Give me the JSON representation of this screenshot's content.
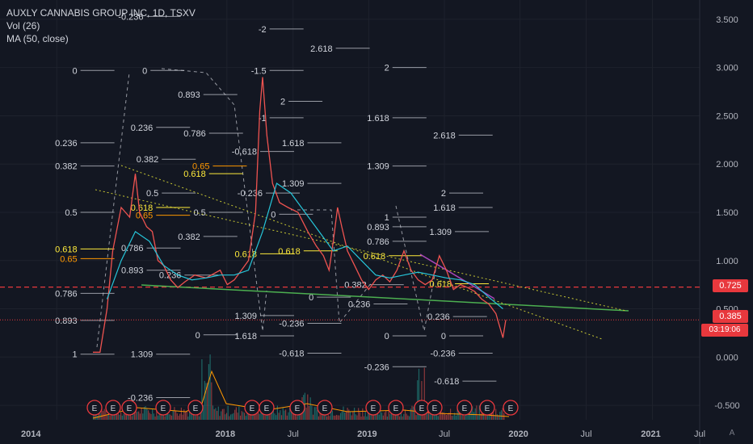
{
  "legend": {
    "title": "AUXLY CANNABIS GROUP INC, 1D, TSXV",
    "vol": "Vol (26)",
    "ma": "MA (50, close)"
  },
  "price_tags": {
    "resistance": "0.725",
    "last": "0.385",
    "timer": "03:19:06"
  },
  "auto_label": "A",
  "colors": {
    "background": "#131722",
    "grid": "#1e222d",
    "axis_text": "#b2b5be",
    "price": "#ef5350",
    "ma": "#26c6da",
    "trend_green": "#4caf50",
    "channel_yellow": "#c6c633",
    "fib": "#d1d4dc",
    "fib_highlight": "#ffeb3b",
    "fib_orange": "#ff9800",
    "dashed_red": "#e8383d",
    "event": "#e8383d"
  },
  "chart_data": {
    "type": "line",
    "x_ticks": [
      "2014",
      "2018",
      "Jul",
      "2019",
      "Jul",
      "2020",
      "Jul",
      "2021",
      "Jul"
    ],
    "y_ticks": [
      "3.500",
      "3.000",
      "2.500",
      "2.000",
      "1.500",
      "1.000",
      "0.500",
      "0.000",
      "-0.500"
    ],
    "ylim": [
      -0.65,
      3.7
    ],
    "resistance_line": 0.725,
    "last_price": 0.385,
    "price_series": [
      {
        "x": 0.0,
        "y": 0.05
      },
      {
        "x": 0.05,
        "y": 0.05
      },
      {
        "x": 0.1,
        "y": 0.5
      },
      {
        "x": 0.14,
        "y": 1.1
      },
      {
        "x": 0.2,
        "y": 1.55
      },
      {
        "x": 0.26,
        "y": 1.45
      },
      {
        "x": 0.3,
        "y": 1.9
      },
      {
        "x": 0.33,
        "y": 1.5
      },
      {
        "x": 0.38,
        "y": 1.35
      },
      {
        "x": 0.42,
        "y": 1.3
      },
      {
        "x": 0.46,
        "y": 1.0
      },
      {
        "x": 0.5,
        "y": 0.95
      },
      {
        "x": 0.55,
        "y": 0.8
      },
      {
        "x": 0.6,
        "y": 0.72
      },
      {
        "x": 0.65,
        "y": 0.78
      },
      {
        "x": 0.72,
        "y": 0.85
      },
      {
        "x": 0.8,
        "y": 0.82
      },
      {
        "x": 0.9,
        "y": 0.9
      },
      {
        "x": 0.95,
        "y": 0.75
      },
      {
        "x": 1.0,
        "y": 0.8
      },
      {
        "x": 1.05,
        "y": 0.9
      },
      {
        "x": 1.1,
        "y": 1.0
      },
      {
        "x": 1.15,
        "y": 1.5
      },
      {
        "x": 1.18,
        "y": 2.55
      },
      {
        "x": 1.2,
        "y": 2.9
      },
      {
        "x": 1.23,
        "y": 2.3
      },
      {
        "x": 1.27,
        "y": 1.8
      },
      {
        "x": 1.32,
        "y": 1.6
      },
      {
        "x": 1.38,
        "y": 1.55
      },
      {
        "x": 1.45,
        "y": 1.5
      },
      {
        "x": 1.52,
        "y": 1.3
      },
      {
        "x": 1.58,
        "y": 1.15
      },
      {
        "x": 1.63,
        "y": 1.05
      },
      {
        "x": 1.67,
        "y": 0.9
      },
      {
        "x": 1.7,
        "y": 1.2
      },
      {
        "x": 1.73,
        "y": 1.55
      },
      {
        "x": 1.76,
        "y": 1.35
      },
      {
        "x": 1.8,
        "y": 1.1
      },
      {
        "x": 1.85,
        "y": 0.95
      },
      {
        "x": 1.9,
        "y": 0.8
      },
      {
        "x": 1.95,
        "y": 0.7
      },
      {
        "x": 2.0,
        "y": 0.8
      },
      {
        "x": 2.05,
        "y": 0.85
      },
      {
        "x": 2.1,
        "y": 0.78
      },
      {
        "x": 2.15,
        "y": 0.9
      },
      {
        "x": 2.2,
        "y": 1.1
      },
      {
        "x": 2.25,
        "y": 0.9
      },
      {
        "x": 2.3,
        "y": 0.8
      },
      {
        "x": 2.35,
        "y": 0.75
      },
      {
        "x": 2.4,
        "y": 0.8
      },
      {
        "x": 2.45,
        "y": 1.05
      },
      {
        "x": 2.5,
        "y": 0.9
      },
      {
        "x": 2.55,
        "y": 0.7
      },
      {
        "x": 2.6,
        "y": 0.75
      },
      {
        "x": 2.65,
        "y": 0.72
      },
      {
        "x": 2.7,
        "y": 0.68
      },
      {
        "x": 2.75,
        "y": 0.6
      },
      {
        "x": 2.8,
        "y": 0.55
      },
      {
        "x": 2.85,
        "y": 0.45
      },
      {
        "x": 2.88,
        "y": 0.3
      },
      {
        "x": 2.9,
        "y": 0.2
      },
      {
        "x": 2.92,
        "y": 0.385
      }
    ],
    "ma_series": [
      {
        "x": 0.1,
        "y": 0.6
      },
      {
        "x": 0.2,
        "y": 1.0
      },
      {
        "x": 0.3,
        "y": 1.3
      },
      {
        "x": 0.4,
        "y": 1.2
      },
      {
        "x": 0.5,
        "y": 0.95
      },
      {
        "x": 0.6,
        "y": 0.85
      },
      {
        "x": 0.7,
        "y": 0.8
      },
      {
        "x": 0.8,
        "y": 0.82
      },
      {
        "x": 0.9,
        "y": 0.85
      },
      {
        "x": 1.0,
        "y": 0.85
      },
      {
        "x": 1.1,
        "y": 0.9
      },
      {
        "x": 1.2,
        "y": 1.3
      },
      {
        "x": 1.3,
        "y": 1.8
      },
      {
        "x": 1.4,
        "y": 1.7
      },
      {
        "x": 1.5,
        "y": 1.5
      },
      {
        "x": 1.6,
        "y": 1.3
      },
      {
        "x": 1.7,
        "y": 1.1
      },
      {
        "x": 1.8,
        "y": 1.15
      },
      {
        "x": 1.9,
        "y": 1.0
      },
      {
        "x": 2.0,
        "y": 0.85
      },
      {
        "x": 2.1,
        "y": 0.82
      },
      {
        "x": 2.2,
        "y": 0.85
      },
      {
        "x": 2.3,
        "y": 0.88
      },
      {
        "x": 2.4,
        "y": 0.85
      },
      {
        "x": 2.5,
        "y": 0.82
      },
      {
        "x": 2.6,
        "y": 0.8
      },
      {
        "x": 2.7,
        "y": 0.75
      },
      {
        "x": 2.8,
        "y": 0.62
      },
      {
        "x": 2.9,
        "y": 0.5
      }
    ],
    "green_trendline": [
      {
        "x": 0.2,
        "y": 0.72
      },
      {
        "x": 3.7,
        "y": 0.42
      }
    ],
    "channel_upper": [
      {
        "x": 0.0,
        "y": 1.75
      },
      {
        "x": 3.7,
        "y": 0.42
      }
    ],
    "channel_lower": [
      {
        "x": 0.3,
        "y": 2.0
      },
      {
        "x": 3.6,
        "y": 0.15
      }
    ],
    "fib_labels": [
      {
        "t": "-0.236",
        "x": 0.2,
        "y": 3.75
      },
      {
        "t": "-0.236",
        "x": 0.75,
        "y": 3.53
      },
      {
        "t": "-2",
        "x": 1.4,
        "y": 3.4
      },
      {
        "t": "2.618",
        "x": 1.75,
        "y": 3.2
      },
      {
        "t": "2",
        "x": 2.05,
        "y": 3.0
      },
      {
        "t": "0",
        "x": 0.4,
        "y": 2.97
      },
      {
        "t": "0",
        "x": 0.77,
        "y": 2.97
      },
      {
        "t": "-1.5",
        "x": 1.4,
        "y": 2.97
      },
      {
        "t": "0.893",
        "x": 1.05,
        "y": 2.72
      },
      {
        "t": "2",
        "x": 1.5,
        "y": 2.65
      },
      {
        "t": "-1",
        "x": 1.4,
        "y": 2.48
      },
      {
        "t": "1.618",
        "x": 2.05,
        "y": 2.48
      },
      {
        "t": "0.236",
        "x": 0.8,
        "y": 2.38
      },
      {
        "t": "0.786",
        "x": 1.08,
        "y": 2.32
      },
      {
        "t": "2.618",
        "x": 2.4,
        "y": 2.3
      },
      {
        "t": "0.236",
        "x": 0.4,
        "y": 2.22
      },
      {
        "t": "1.618",
        "x": 1.6,
        "y": 2.22
      },
      {
        "t": "-0.618",
        "x": 1.35,
        "y": 2.13
      },
      {
        "t": "0.382",
        "x": 0.83,
        "y": 2.05
      },
      {
        "t": "1.309",
        "x": 2.05,
        "y": 1.98
      },
      {
        "t": "0.382",
        "x": 0.4,
        "y": 1.98
      },
      {
        "t": "1.309",
        "x": 1.6,
        "y": 1.8
      },
      {
        "t": "0.5",
        "x": 0.83,
        "y": 1.7
      },
      {
        "t": "-0.236",
        "x": 1.38,
        "y": 1.7
      },
      {
        "t": "2",
        "x": 2.35,
        "y": 1.7
      },
      {
        "t": "1",
        "x": 2.05,
        "y": 1.45
      },
      {
        "t": "0",
        "x": 1.45,
        "y": 1.48
      },
      {
        "t": "0.5",
        "x": 1.08,
        "y": 1.5
      },
      {
        "t": "1.618",
        "x": 2.4,
        "y": 1.55
      },
      {
        "t": "0.893",
        "x": 2.05,
        "y": 1.35
      },
      {
        "t": "0.5",
        "x": 0.4,
        "y": 1.5
      },
      {
        "t": "0.786",
        "x": 2.05,
        "y": 1.2
      },
      {
        "t": "1.309",
        "x": 2.38,
        "y": 1.3
      },
      {
        "t": "0.382",
        "x": 1.05,
        "y": 1.25
      },
      {
        "t": "0.786",
        "x": 0.75,
        "y": 1.13
      },
      {
        "t": "0.893",
        "x": 0.75,
        "y": 0.9
      },
      {
        "t": "0.236",
        "x": 0.95,
        "y": 0.85
      },
      {
        "t": "0.786",
        "x": 0.4,
        "y": 0.66
      },
      {
        "t": "0.893",
        "x": 0.4,
        "y": 0.38
      },
      {
        "t": "1",
        "x": 0.4,
        "y": 0.03
      },
      {
        "t": "1.309",
        "x": 0.8,
        "y": 0.03
      },
      {
        "t": "0",
        "x": 1.05,
        "y": 0.23
      },
      {
        "t": "1.309",
        "x": 1.35,
        "y": 0.43
      },
      {
        "t": "-0.236",
        "x": 1.6,
        "y": 0.35
      },
      {
        "t": "1.618",
        "x": 1.35,
        "y": 0.22
      },
      {
        "t": "-0.618",
        "x": 1.6,
        "y": 0.04
      },
      {
        "t": "-0.236",
        "x": 2.05,
        "y": -0.1
      },
      {
        "t": "-0.236",
        "x": 2.4,
        "y": 0.04
      },
      {
        "t": "-0.618",
        "x": 2.42,
        "y": -0.25
      },
      {
        "t": "0",
        "x": 2.05,
        "y": 0.22
      },
      {
        "t": "0",
        "x": 2.35,
        "y": 0.22
      },
      {
        "t": "0.236",
        "x": 2.37,
        "y": 0.42
      },
      {
        "t": "0.236",
        "x": 1.95,
        "y": 0.55
      },
      {
        "t": "0.382",
        "x": 1.93,
        "y": 0.75
      },
      {
        "t": "0",
        "x": 1.65,
        "y": 0.62
      },
      {
        "t": "-0.236",
        "x": 0.8,
        "y": -0.42
      }
    ],
    "fib_highlight_labels": [
      {
        "t": "0.65",
        "x": 1.1,
        "y": 1.98
      },
      {
        "t": "0.618",
        "x": 1.08,
        "y": 1.9
      },
      {
        "t": "0.618",
        "x": 0.8,
        "y": 1.55
      },
      {
        "t": "0.65",
        "x": 0.8,
        "y": 1.47
      },
      {
        "t": "0.618",
        "x": 0.4,
        "y": 1.12
      },
      {
        "t": "0.65",
        "x": 0.4,
        "y": 1.02
      },
      {
        "t": "0.618",
        "x": 1.58,
        "y": 1.1
      },
      {
        "t": "0.618",
        "x": 1.35,
        "y": 1.07
      },
      {
        "t": "0.618",
        "x": 2.03,
        "y": 1.05
      },
      {
        "t": "0.618",
        "x": 2.38,
        "y": 0.76
      }
    ],
    "event_markers": 19
  }
}
